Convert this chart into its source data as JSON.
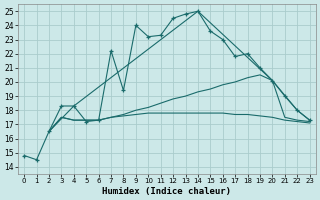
{
  "xlabel": "Humidex (Indice chaleur)",
  "xlim": [
    -0.5,
    23.5
  ],
  "ylim": [
    13.5,
    25.5
  ],
  "yticks": [
    14,
    15,
    16,
    17,
    18,
    19,
    20,
    21,
    22,
    23,
    24,
    25
  ],
  "xticks": [
    0,
    1,
    2,
    3,
    4,
    5,
    6,
    7,
    8,
    9,
    10,
    11,
    12,
    13,
    14,
    15,
    16,
    17,
    18,
    19,
    20,
    21,
    22,
    23
  ],
  "bg_color": "#cce8e8",
  "grid_color": "#aacccc",
  "line_color": "#1a6b6b",
  "s0_x": [
    0,
    1,
    2,
    3,
    4,
    5,
    6,
    7,
    8,
    9,
    10,
    11,
    12,
    13,
    14,
    15,
    16,
    17,
    18,
    19,
    20,
    21,
    22,
    23
  ],
  "s0_y": [
    14.8,
    14.5,
    16.5,
    18.3,
    18.3,
    17.2,
    17.3,
    22.2,
    19.4,
    24.0,
    23.2,
    23.3,
    24.5,
    24.8,
    25.0,
    23.6,
    23.0,
    21.8,
    22.0,
    21.0,
    20.1,
    19.0,
    18.0,
    17.3
  ],
  "s1_x": [
    2,
    3,
    4,
    5,
    6,
    7,
    8,
    9,
    10,
    11,
    12,
    13,
    14,
    15,
    16,
    17,
    18,
    19,
    20,
    21,
    22,
    23
  ],
  "s1_y": [
    16.5,
    17.5,
    17.3,
    17.3,
    17.3,
    17.5,
    17.7,
    18.0,
    18.2,
    18.5,
    18.8,
    19.0,
    19.3,
    19.5,
    19.8,
    20.0,
    20.3,
    20.5,
    20.1,
    17.5,
    17.3,
    17.2
  ],
  "s2_x": [
    2,
    3,
    4,
    5,
    6,
    7,
    8,
    9,
    10,
    11,
    12,
    13,
    14,
    15,
    16,
    17,
    18,
    19,
    20,
    21,
    22,
    23
  ],
  "s2_y": [
    16.5,
    17.5,
    17.3,
    17.3,
    17.3,
    17.5,
    17.6,
    17.7,
    17.8,
    17.8,
    17.8,
    17.8,
    17.8,
    17.8,
    17.8,
    17.7,
    17.7,
    17.6,
    17.5,
    17.3,
    17.2,
    17.1
  ],
  "s3_x": [
    2,
    4,
    14,
    20,
    22,
    23
  ],
  "s3_y": [
    16.5,
    18.3,
    25.0,
    20.1,
    18.0,
    17.3
  ]
}
